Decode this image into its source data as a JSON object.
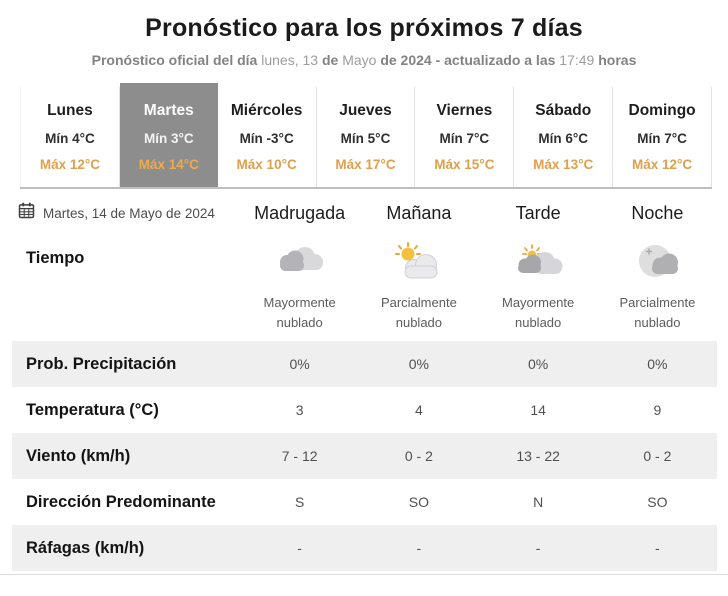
{
  "header": {
    "title": "Pronóstico para los próximos 7 días",
    "subtitle_parts": [
      {
        "text": "Pronóstico oficial del día ",
        "bold": true
      },
      {
        "text": "lunes, 13 ",
        "bold": false
      },
      {
        "text": "de ",
        "bold": true
      },
      {
        "text": "Mayo ",
        "bold": false
      },
      {
        "text": "de 2024 ",
        "bold": true
      },
      {
        "text": "- actualizado a las ",
        "bold": true
      },
      {
        "text": "17:49 ",
        "bold": false
      },
      {
        "text": "horas",
        "bold": true
      }
    ]
  },
  "days": [
    {
      "name": "Lunes",
      "min": "Mín 4°C",
      "max": "Máx 12°C",
      "selected": false
    },
    {
      "name": "Martes",
      "min": "Mín 3°C",
      "max": "Máx 14°C",
      "selected": true
    },
    {
      "name": "Miércoles",
      "min": "Mín -3°C",
      "max": "Máx 10°C",
      "selected": false
    },
    {
      "name": "Jueves",
      "min": "Mín 5°C",
      "max": "Máx 17°C",
      "selected": false
    },
    {
      "name": "Viernes",
      "min": "Mín 7°C",
      "max": "Máx 15°C",
      "selected": false
    },
    {
      "name": "Sábado",
      "min": "Mín 6°C",
      "max": "Máx 13°C",
      "selected": false
    },
    {
      "name": "Domingo",
      "min": "Mín 7°C",
      "max": "Máx 12°C",
      "selected": false
    }
  ],
  "table": {
    "date_label": "Martes, 14 de Mayo de 2024",
    "calendar_icon": "calendar-icon",
    "periods": [
      "Madrugada",
      "Mañana",
      "Tarde",
      "Noche"
    ]
  },
  "weather": {
    "label": "Tiempo",
    "cells": [
      {
        "icon": "mostly-cloudy",
        "desc": "Mayormente nublado"
      },
      {
        "icon": "partly-cloudy-day",
        "desc": "Parcialmente nublado"
      },
      {
        "icon": "mostly-cloudy-day",
        "desc": "Mayormente nublado"
      },
      {
        "icon": "partly-cloudy-night",
        "desc": "Parcialmente nublado"
      }
    ]
  },
  "rows": [
    {
      "label": "Prob. Precipitación",
      "values": [
        "0%",
        "0%",
        "0%",
        "0%"
      ],
      "shaded": true
    },
    {
      "label": "Temperatura (°C)",
      "values": [
        "3",
        "4",
        "14",
        "9"
      ],
      "shaded": false
    },
    {
      "label": "Viento (km/h)",
      "values": [
        "7 - 12",
        "0 - 2",
        "13 - 22",
        "0 - 2"
      ],
      "shaded": true
    },
    {
      "label": "Dirección Predominante",
      "values": [
        "S",
        "SO",
        "N",
        "SO"
      ],
      "shaded": false
    },
    {
      "label": "Ráfagas (km/h)",
      "values": [
        "-",
        "-",
        "-",
        "-"
      ],
      "shaded": true
    }
  ],
  "colors": {
    "max_temp_accent": "#dfa04b",
    "selected_day_bg": "#8d8d8d",
    "shaded_row_bg": "#efefef",
    "sun_yellow": "#f4c03e",
    "sun_rays_orange": "#eaa43c"
  }
}
